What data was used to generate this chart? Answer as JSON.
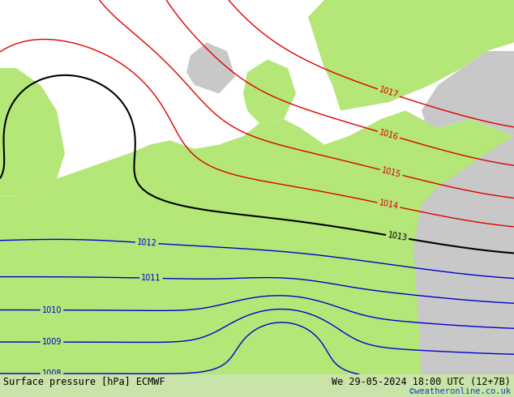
{
  "title_left": "Surface pressure [hPa] ECMWF",
  "title_right": "We 29-05-2024 18:00 UTC (12+7B)",
  "credit": "©weatheronline.co.uk",
  "bg_sea": "#e8e8e8",
  "bg_green": "#b4e678",
  "bg_grey_land": "#c8c8c8",
  "bg_bar": "#c8e4a8",
  "figsize": [
    6.34,
    4.9
  ],
  "dpi": 100,
  "c_black": "#000000",
  "c_blue": "#0000cc",
  "c_red": "#dd0000",
  "text_color": "#000000",
  "credit_color": "#1144bb",
  "lw_main": 1.3,
  "lw_sub": 1.0,
  "label_fs": 7
}
